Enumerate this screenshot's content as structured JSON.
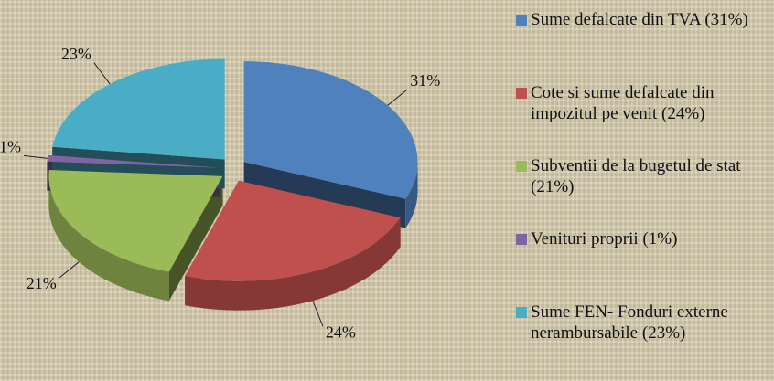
{
  "chart_data": {
    "type": "pie",
    "categories": [
      "Sume defalcate din TVA (31%)",
      "Cote si sume defalcate din impozitul pe venit (24%)",
      "Subventii de la bugetul de stat (21%)",
      "Venituri proprii (1%)",
      "Sume FEN- Fonduri externe nerambursabile (23%)"
    ],
    "values": [
      31,
      24,
      21,
      1,
      23
    ],
    "value_labels": [
      "31%",
      "24%",
      "21%",
      "1%",
      "23%"
    ],
    "colors": [
      "#4f81bd",
      "#c0504d",
      "#9bbb59",
      "#8064a2",
      "#4bacc6"
    ],
    "legend": "right"
  }
}
